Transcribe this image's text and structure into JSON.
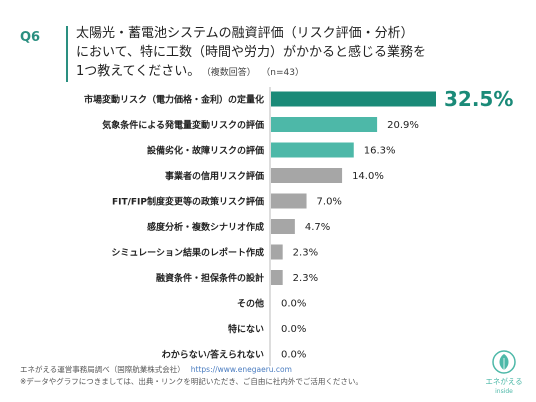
{
  "header": {
    "q_tag": "Q6",
    "question_line1": "太陽光・蓄電池システムの融資評価（リスク評価・分析）",
    "question_line2": "において、特に工数（時間や労力）がかかると感じる業務を",
    "question_line3": "1つ教えてください。",
    "multi_note": "（複数回答）",
    "n_label": "（n=43）"
  },
  "chart_data": {
    "type": "bar",
    "orientation": "horizontal",
    "categories": [
      "市場変動リスク（電力価格・金利）の定量化",
      "気象条件による発電量変動リスクの評価",
      "設備劣化・故障リスクの評価",
      "事業者の信用リスク評価",
      "FIT/FIP制度変更等の政策リスク評価",
      "感度分析・複数シナリオ作成",
      "シミュレーション結果のレポート作成",
      "融資条件・担保条件の設計",
      "その他",
      "特にない",
      "わからない/答えられない"
    ],
    "values": [
      32.5,
      20.9,
      16.3,
      14.0,
      7.0,
      4.7,
      2.3,
      2.3,
      0.0,
      0.0,
      0.0
    ],
    "value_labels": [
      "32.5%",
      "20.9%",
      "16.3%",
      "14.0%",
      "7.0%",
      "4.7%",
      "2.3%",
      "2.3%",
      "0.0%",
      "0.0%",
      "0.0%"
    ],
    "xlim": [
      0,
      32.5
    ],
    "grid": false,
    "colors": {
      "top": "#1a8a78",
      "teal": "#4db8a8",
      "gray": "#a6a6a6"
    },
    "color_group": [
      "top",
      "teal",
      "teal",
      "gray",
      "gray",
      "gray",
      "gray",
      "gray",
      "gray",
      "gray",
      "gray"
    ]
  },
  "footer": {
    "source": "エネがえる運営事務局調べ（国際航業株式会社）",
    "url": "https://www.enegaeru.com",
    "note": "※データやグラフにつきましては、出典・リンクを明記いただき、ご自由に社内外でご活用ください。"
  },
  "logo": {
    "text_main": "エネがえる",
    "text_sub": "inside",
    "icon": "enegaeru-logo-icon",
    "color": "#4db8a8"
  }
}
